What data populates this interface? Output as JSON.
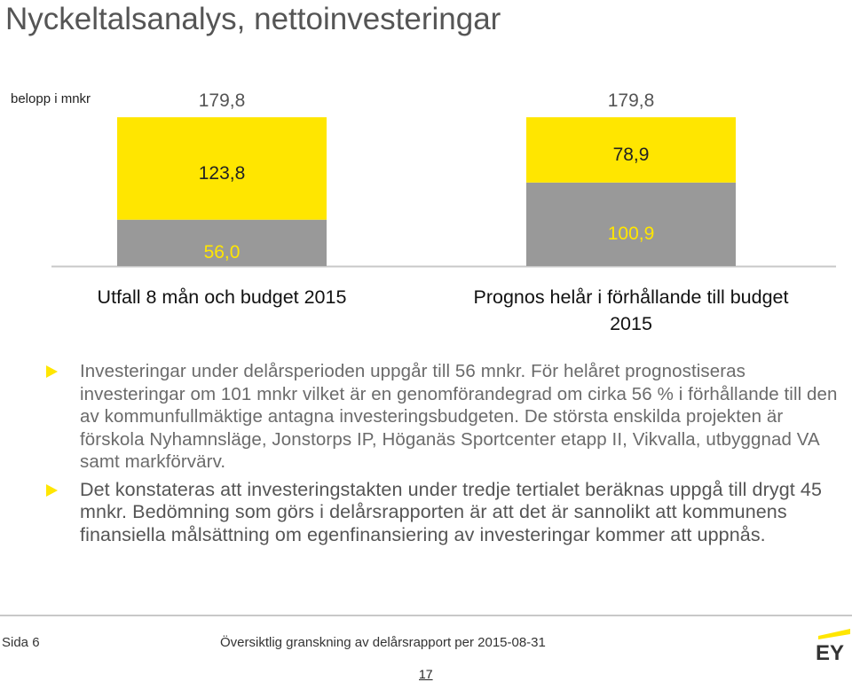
{
  "title": "Nyckeltalsanalys, nettoinvesteringar",
  "unit_label": "belopp i mnkr",
  "colors": {
    "accent_yellow": "#ffe600",
    "bar_gray": "#999999"
  },
  "chart_data": {
    "type": "bar",
    "stacked": true,
    "categories": [
      "Utfall 8 mån och budget 2015",
      "Prognos helår i förhållande till budget 2015"
    ],
    "category_label_lines": [
      [
        "Utfall 8 mån och budget 2015"
      ],
      [
        "Prognos helår i förhållande till budget",
        "2015"
      ]
    ],
    "series": [
      {
        "values": [
          56.0,
          100.9
        ],
        "labels": [
          "56,0",
          "100,9"
        ],
        "color": "#999999"
      },
      {
        "values": [
          123.8,
          78.9
        ],
        "labels": [
          "123,8",
          "78,9"
        ],
        "color": "#ffe600"
      }
    ],
    "totals": [
      179.8,
      179.8
    ],
    "total_labels": [
      "179,8",
      "179,8"
    ],
    "ylim": [
      0,
      180
    ]
  },
  "bullets": [
    "Investeringar under delårsperioden uppgår till 56 mnkr. För helåret prognostiseras investeringar om 101 mnkr vilket är en genomförandegrad om cirka 56 % i förhållande till den av kommunfullmäktige antagna investeringsbudgeten. De största enskilda projekten är förskola Nyhamnsläge, Jonstorps IP, Höganäs Sportcenter etapp II, Vikvalla, utbyggnad VA samt markförvärv.",
    "Det konstateras att investeringstakten under tredje tertialet beräknas uppgå till drygt 45 mnkr. Bedömning som görs i delårsrapporten är att det är sannolikt att kommunens finansiella målsättning om egenfinansiering av investeringar kommer att uppnås."
  ],
  "footer": {
    "page_label": "Sida 6",
    "text": "Översiktlig granskning av delårsrapport per 2015-08-31",
    "page_number": "17",
    "logo_text": "EY"
  }
}
